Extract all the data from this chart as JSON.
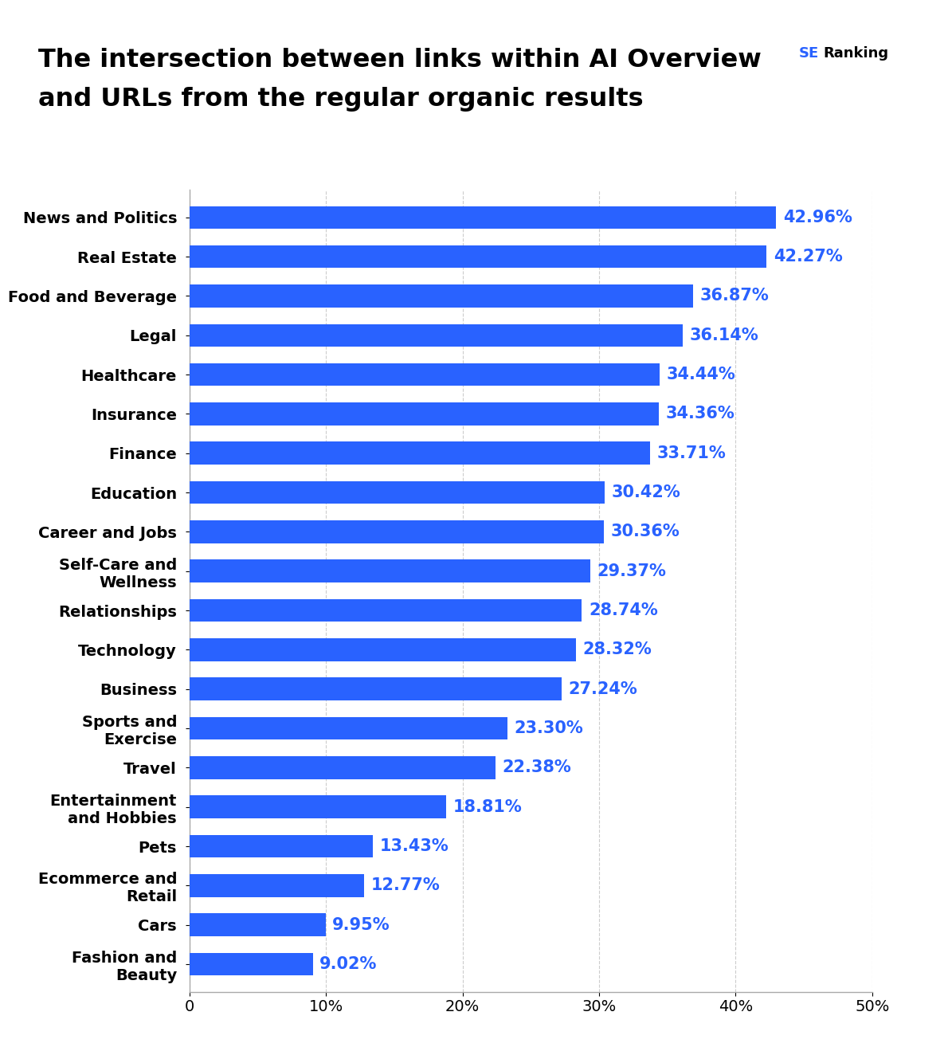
{
  "title_line1": "The intersection between links within AI Overview",
  "title_line2": "and URLs from the regular organic results",
  "categories": [
    "News and Politics",
    "Real Estate",
    "Food and Beverage",
    "Legal",
    "Healthcare",
    "Insurance",
    "Finance",
    "Education",
    "Career and Jobs",
    "Self-Care and\nWellness",
    "Relationships",
    "Technology",
    "Business",
    "Sports and\nExercise",
    "Travel",
    "Entertainment\nand Hobbies",
    "Pets",
    "Ecommerce and\nRetail",
    "Cars",
    "Fashion and\nBeauty"
  ],
  "values": [
    42.96,
    42.27,
    36.87,
    36.14,
    34.44,
    34.36,
    33.71,
    30.42,
    30.36,
    29.37,
    28.74,
    28.32,
    27.24,
    23.3,
    22.38,
    18.81,
    13.43,
    12.77,
    9.95,
    9.02
  ],
  "bar_color": "#2962FF",
  "label_color": "#2962FF",
  "background_color": "#ffffff",
  "title_color": "#000000",
  "xlim": [
    0,
    50
  ],
  "xticks": [
    0,
    10,
    20,
    30,
    40,
    50
  ],
  "xticklabels": [
    "0",
    "10%",
    "20%",
    "30%",
    "40%",
    "50%"
  ],
  "bar_height": 0.58,
  "title_fontsize": 23,
  "label_fontsize": 15,
  "tick_fontsize": 14,
  "category_fontsize": 14,
  "logo_text_se_color": "#2962FF",
  "logo_text_ranking_color": "#000000",
  "logo_box_color": "#2962FF",
  "grid_color": "#cccccc",
  "grid_linestyle": "--",
  "grid_linewidth": 0.8
}
